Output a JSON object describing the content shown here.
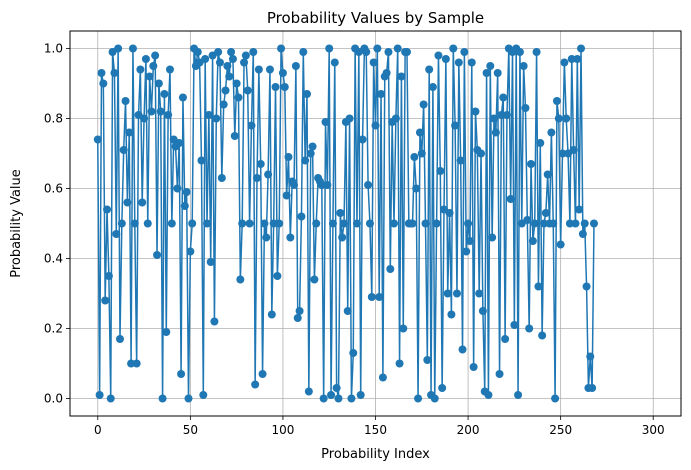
{
  "chart_data": {
    "type": "line",
    "title": "Probability Values by Sample",
    "xlabel": "Probability Index",
    "ylabel": "Probability Value",
    "xlim": [
      -15,
      315
    ],
    "ylim": [
      -0.05,
      1.05
    ],
    "xticks": [
      0,
      50,
      100,
      150,
      200,
      250,
      300
    ],
    "yticks": [
      0.0,
      0.2,
      0.4,
      0.6,
      0.8,
      1.0
    ],
    "xtick_labels": [
      "0",
      "50",
      "100",
      "150",
      "200",
      "250",
      "300"
    ],
    "ytick_labels": [
      "0.0",
      "0.2",
      "0.4",
      "0.6",
      "0.8",
      "1.0"
    ],
    "grid": true,
    "legend": false,
    "color": "#1f77b4",
    "marker": "circle",
    "series": [
      {
        "name": "",
        "x_start": 0,
        "x_step": 1,
        "values": [
          0.74,
          0.01,
          0.93,
          0.9,
          0.28,
          0.54,
          0.35,
          0.0,
          0.99,
          0.93,
          0.47,
          1.0,
          0.17,
          0.5,
          0.71,
          0.85,
          0.56,
          0.76,
          0.1,
          1.0,
          0.5,
          0.1,
          0.81,
          0.94,
          0.56,
          0.8,
          0.97,
          0.5,
          0.92,
          0.82,
          0.95,
          0.98,
          0.41,
          0.9,
          0.82,
          0.0,
          0.87,
          0.19,
          0.81,
          0.94,
          0.5,
          0.74,
          0.72,
          0.6,
          0.73,
          0.07,
          0.86,
          0.55,
          0.59,
          0.0,
          0.42,
          0.5,
          1.0,
          0.95,
          0.99,
          0.96,
          0.68,
          0.01,
          0.97,
          0.5,
          0.81,
          0.39,
          0.98,
          0.22,
          0.8,
          0.99,
          0.96,
          0.63,
          0.84,
          0.88,
          0.95,
          0.92,
          0.99,
          0.97,
          0.75,
          0.9,
          0.86,
          0.34,
          0.5,
          0.96,
          0.98,
          0.88,
          0.5,
          0.78,
          0.99,
          0.04,
          0.63,
          0.94,
          0.67,
          0.07,
          0.5,
          0.46,
          0.64,
          0.94,
          0.24,
          0.5,
          0.89,
          0.35,
          0.5,
          1.0,
          0.93,
          0.89,
          0.58,
          0.69,
          0.46,
          0.62,
          0.61,
          0.95,
          0.23,
          0.25,
          0.52,
          0.99,
          0.68,
          0.87,
          0.02,
          0.7,
          0.72,
          0.34,
          0.5,
          0.63,
          0.62,
          0.61,
          0.0,
          0.79,
          0.61,
          1.0,
          0.01,
          0.5,
          0.96,
          0.03,
          0.0,
          0.53,
          0.46,
          0.5,
          0.79,
          0.25,
          0.8,
          0.0,
          0.13,
          1.0,
          0.5,
          0.99,
          0.01,
          0.74,
          1.0,
          0.99,
          0.61,
          0.5,
          0.29,
          0.96,
          0.78,
          1.0,
          0.29,
          0.87,
          0.06,
          0.92,
          0.93,
          0.99,
          0.37,
          0.79,
          0.5,
          0.8,
          1.0,
          0.1,
          0.92,
          0.2,
          0.99,
          0.99,
          0.5,
          0.5,
          0.5,
          0.69,
          0.6,
          0.0,
          0.76,
          0.7,
          0.84,
          0.5,
          0.11,
          0.94,
          0.01,
          0.89,
          0.0,
          0.5,
          0.98,
          0.65,
          0.03,
          0.54,
          0.97,
          0.3,
          0.53,
          0.24,
          1.0,
          0.78,
          0.3,
          0.96,
          0.68,
          0.14,
          0.99,
          0.42,
          0.5,
          0.45,
          0.96,
          0.09,
          0.82,
          0.71,
          0.3,
          0.7,
          0.25,
          0.02,
          0.93,
          0.01,
          0.95,
          0.46,
          0.8,
          0.76,
          0.93,
          0.07,
          0.81,
          0.86,
          0.17,
          0.81,
          1.0,
          0.57,
          0.99,
          0.21,
          1.0,
          0.01,
          0.99,
          0.5,
          0.95,
          0.83,
          0.51,
          0.2,
          0.67,
          0.45,
          0.5,
          0.99,
          0.32,
          0.73,
          0.18,
          0.5,
          0.53,
          0.64,
          0.5,
          0.76,
          0.5,
          0.0,
          0.85,
          0.8,
          0.44,
          0.7,
          0.96,
          0.8,
          0.7,
          0.5,
          0.97,
          0.71,
          0.5,
          0.97,
          0.54,
          1.0,
          0.47,
          0.5,
          0.32,
          0.03,
          0.12,
          0.03,
          0.5
        ]
      }
    ]
  }
}
